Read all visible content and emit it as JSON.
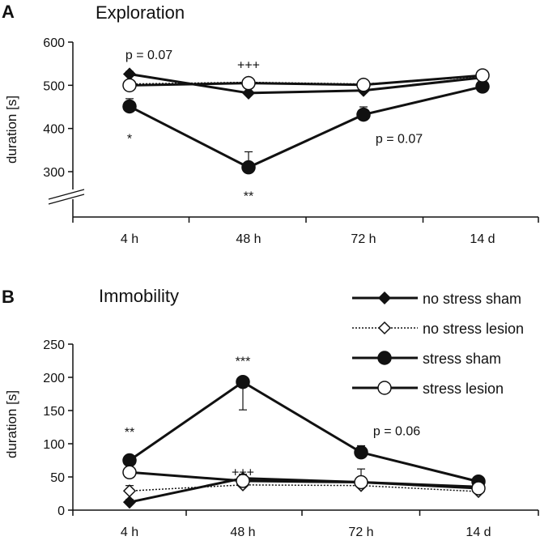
{
  "chart_data": [
    {
      "panel": "A",
      "title": "Exploration",
      "type": "line",
      "ylabel": "duration [s]",
      "categories": [
        "4 h",
        "48 h",
        "72 h",
        "14 d"
      ],
      "ylim": [
        200,
        600
      ],
      "yticks": [
        300,
        400,
        500,
        600
      ],
      "axis_break": true,
      "series": [
        {
          "name": "no stress sham",
          "values": [
            526,
            482,
            488,
            518
          ],
          "errors": [
            6,
            14,
            10,
            6
          ],
          "marker": "diamond-filled",
          "dash": "solid",
          "width": 3
        },
        {
          "name": "no stress lesion",
          "values": [
            503,
            507,
            503,
            520
          ],
          "errors": [
            5,
            8,
            6,
            5
          ],
          "marker": "diamond-open",
          "dash": "dotted",
          "width": 1.5
        },
        {
          "name": "stress sham",
          "values": [
            451,
            310,
            432,
            497
          ],
          "errors": [
            18,
            36,
            18,
            6
          ],
          "marker": "circle-filled",
          "dash": "solid",
          "width": 3
        },
        {
          "name": "stress lesion",
          "values": [
            500,
            505,
            501,
            523
          ],
          "errors": [
            8,
            10,
            8,
            6
          ],
          "marker": "circle-open",
          "dash": "solid",
          "width": 3
        }
      ],
      "annotations": [
        {
          "text": "p = 0.07",
          "x": "4 h",
          "y": 572
        },
        {
          "text": "+++",
          "x": "48 h",
          "y": 548
        },
        {
          "text": "*",
          "x": "4 h",
          "y": 378
        },
        {
          "text": "**",
          "x": "48 h",
          "y": 245
        },
        {
          "text": "p = 0.07",
          "x": "72 h",
          "y": 378
        }
      ]
    },
    {
      "panel": "B",
      "title": "Immobility",
      "type": "line",
      "ylabel": "duration [s]",
      "categories": [
        "4 h",
        "48 h",
        "72 h",
        "14 d"
      ],
      "ylim": [
        0,
        250
      ],
      "yticks": [
        0,
        50,
        100,
        150,
        200,
        250
      ],
      "series": [
        {
          "name": "no stress sham",
          "values": [
            12,
            48,
            42,
            35
          ],
          "errors": [
            4,
            6,
            8,
            4
          ],
          "marker": "diamond-filled",
          "dash": "solid",
          "width": 3
        },
        {
          "name": "no stress lesion",
          "values": [
            29,
            38,
            37,
            28
          ],
          "errors": [
            8,
            6,
            6,
            4
          ],
          "marker": "diamond-open",
          "dash": "dotted",
          "width": 1.5
        },
        {
          "name": "stress sham",
          "values": [
            75,
            193,
            87,
            43
          ],
          "errors": [
            8,
            42,
            10,
            4
          ],
          "marker": "circle-filled",
          "dash": "solid",
          "width": 3
        },
        {
          "name": "stress lesion",
          "values": [
            57,
            44,
            42,
            33
          ],
          "errors": [
            10,
            8,
            20,
            6
          ],
          "marker": "circle-open",
          "dash": "solid",
          "width": 3
        }
      ],
      "annotations": [
        {
          "text": "**",
          "x": "4 h",
          "y": 118
        },
        {
          "text": "***",
          "x": "48 h",
          "y": 225
        },
        {
          "text": "p = 0.06",
          "x": "72 h",
          "y": 120
        },
        {
          "text": "+++",
          "x": "48 h",
          "y": 58
        }
      ]
    }
  ],
  "legend": {
    "placement": "right of panel B",
    "entries": [
      "no stress sham",
      "no stress lesion",
      "stress sham",
      "stress lesion"
    ]
  }
}
